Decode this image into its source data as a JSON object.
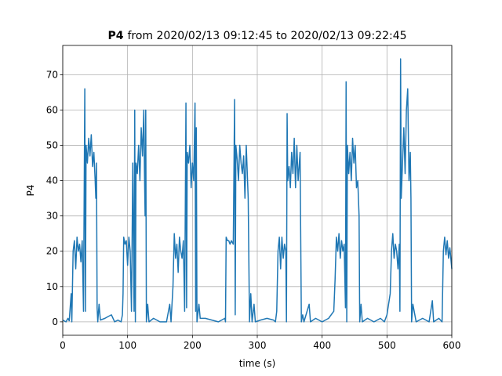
{
  "chart_data": {
    "type": "line",
    "title_bold": "P4",
    "title": "from 2020/02/13 09:12:45 to 2020/02/13 09:22:45",
    "x_label": "time (s)",
    "y_label": "P4",
    "xlim": [
      0,
      600
    ],
    "ylim": [
      -3.8,
      78.3
    ],
    "xticks": [
      0,
      100,
      200,
      300,
      400,
      500,
      600
    ],
    "yticks": [
      0,
      10,
      20,
      30,
      40,
      50,
      60,
      70
    ],
    "grid": true,
    "series": [
      {
        "name": "P4",
        "color": "#1f77b4",
        "x": [
          0,
          5,
          8,
          10,
          13,
          14,
          16,
          18,
          20,
          22,
          24,
          26,
          28,
          30,
          32,
          34,
          35,
          36,
          38,
          40,
          42,
          44,
          46,
          48,
          50,
          51,
          52,
          53,
          54,
          56,
          58,
          65,
          75,
          80,
          85,
          90,
          92,
          93,
          94,
          96,
          98,
          100,
          102,
          104,
          106,
          108,
          110,
          111,
          112,
          113,
          115,
          117,
          119,
          121,
          123,
          125,
          126,
          127,
          128,
          129,
          131,
          133,
          140,
          150,
          160,
          165,
          167,
          170,
          172,
          174,
          176,
          178,
          180,
          182,
          184,
          186,
          188,
          190,
          191,
          192,
          194,
          196,
          198,
          200,
          202,
          204,
          205,
          206,
          207,
          210,
          212,
          220,
          230,
          240,
          250,
          251,
          252,
          254,
          256,
          258,
          260,
          263,
          265,
          266,
          267,
          269,
          271,
          273,
          275,
          277,
          279,
          281,
          283,
          286,
          288,
          290,
          292,
          295,
          297,
          305,
          315,
          325,
          328,
          330,
          332,
          334,
          336,
          338,
          340,
          342,
          344,
          345,
          346,
          347,
          349,
          351,
          353,
          355,
          357,
          359,
          361,
          363,
          366,
          368,
          370,
          372,
          380,
          382,
          390,
          400,
          410,
          418,
          420,
          422,
          424,
          426,
          428,
          430,
          432,
          434,
          436,
          437,
          438,
          439,
          441,
          443,
          445,
          447,
          449,
          451,
          453,
          455,
          457,
          458,
          460,
          462,
          470,
          480,
          490,
          496,
          500,
          505,
          507,
          509,
          511,
          513,
          515,
          517,
          519,
          520,
          521,
          522,
          524,
          526,
          528,
          530,
          532,
          534,
          536,
          537,
          538,
          540,
          545,
          555,
          565,
          570,
          572,
          580,
          585,
          587,
          589,
          591,
          593,
          595,
          597,
          600
        ],
        "values": [
          0.5,
          0,
          1,
          0.3,
          8,
          0,
          20,
          23,
          15,
          24,
          20,
          22,
          17,
          23,
          3,
          66,
          3,
          50,
          45,
          52,
          47,
          53,
          44,
          48,
          40,
          35,
          45,
          4,
          0,
          5,
          0.5,
          1,
          2,
          0,
          0.5,
          0,
          2,
          8,
          24,
          22,
          23,
          16,
          24,
          20,
          3,
          45,
          3,
          60,
          0,
          45,
          42,
          50,
          40,
          55,
          47,
          60,
          43,
          30,
          60,
          0,
          5,
          0,
          1,
          0,
          0,
          5,
          0,
          10,
          25,
          18,
          22,
          14,
          24,
          20,
          18,
          23,
          3,
          62,
          4,
          48,
          45,
          50,
          38,
          45,
          40,
          62,
          3,
          55,
          0,
          5,
          1,
          1,
          0.5,
          0,
          1,
          0,
          24,
          23,
          23,
          22,
          23,
          22,
          63,
          2,
          50,
          46,
          40,
          50,
          45,
          42,
          47,
          35,
          50,
          35,
          0,
          8,
          0,
          5,
          0,
          0.5,
          1,
          0.5,
          0,
          3,
          20,
          24,
          15,
          24,
          18,
          22,
          20,
          0,
          59,
          40,
          44,
          38,
          48,
          42,
          52,
          38,
          50,
          40,
          48,
          0,
          2,
          0,
          5,
          0,
          1,
          0,
          1,
          3,
          12,
          24,
          20,
          25,
          18,
          23,
          20,
          22,
          4,
          68,
          0,
          50,
          42,
          48,
          40,
          52,
          45,
          50,
          38,
          40,
          30,
          0,
          5,
          0,
          1,
          0,
          1,
          0,
          2,
          8,
          20,
          25,
          18,
          22,
          20,
          15,
          22,
          3,
          74.5,
          35,
          45,
          55,
          42,
          60,
          66,
          40,
          48,
          35,
          0,
          5,
          0,
          1,
          0,
          6,
          0,
          1,
          0,
          20,
          24,
          19,
          23,
          18,
          21,
          15
        ]
      }
    ]
  }
}
